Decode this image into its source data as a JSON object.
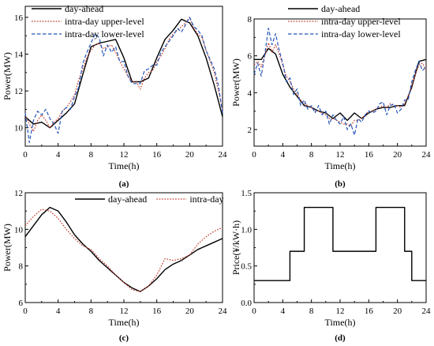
{
  "chart_data": [
    {
      "panel": "(a)",
      "type": "line",
      "xlabel": "Time(h)",
      "ylabel": "Power(MW)",
      "xlim": [
        0,
        24
      ],
      "ylim": [
        9,
        16.6
      ],
      "xticks": [
        0,
        4,
        8,
        12,
        16,
        20,
        24
      ],
      "yticks": [
        10,
        12,
        14,
        16
      ],
      "grid": false,
      "legend": "top-left",
      "series": [
        {
          "name": "day-ahead",
          "color": "#000000",
          "dash": "solid",
          "x": [
            0,
            1,
            2,
            3,
            4,
            5,
            6,
            7,
            8,
            9,
            10,
            11,
            12,
            13,
            14,
            15,
            16,
            17,
            18,
            19,
            20,
            21,
            22,
            23,
            24
          ],
          "y": [
            10.6,
            10.2,
            10.3,
            10.0,
            10.4,
            10.8,
            11.3,
            12.9,
            14.4,
            14.6,
            14.7,
            14.8,
            13.8,
            12.5,
            12.5,
            12.7,
            13.8,
            14.8,
            15.3,
            15.9,
            15.7,
            15.0,
            13.8,
            12.3,
            10.6
          ]
        },
        {
          "name": "intra-day upper-level",
          "color": "#c0392b",
          "dash": "dot",
          "x": [
            0,
            0.5,
            1,
            1.5,
            2,
            2.5,
            3,
            3.5,
            4,
            4.5,
            5,
            5.5,
            6,
            6.5,
            7,
            7.5,
            8,
            8.5,
            9,
            9.5,
            10,
            10.5,
            11,
            11.5,
            12,
            12.5,
            13,
            13.5,
            14,
            14.5,
            15,
            15.5,
            16,
            16.5,
            17,
            17.5,
            18,
            18.5,
            19,
            19.5,
            20,
            20.5,
            21,
            21.5,
            22,
            22.5,
            23,
            23.5,
            24
          ],
          "y": [
            10.7,
            10.2,
            9.8,
            10.4,
            10.7,
            10.4,
            10.0,
            10.3,
            10.5,
            10.9,
            11.1,
            11.4,
            11.8,
            12.6,
            13.2,
            13.8,
            14.2,
            14.5,
            14.6,
            14.3,
            14.4,
            14.5,
            14.1,
            13.6,
            13.2,
            12.8,
            12.5,
            12.5,
            12.1,
            12.7,
            13.0,
            13.1,
            13.6,
            13.9,
            14.3,
            14.8,
            15.1,
            15.3,
            15.5,
            15.7,
            16.0,
            15.4,
            15.1,
            14.9,
            14.2,
            13.6,
            13.0,
            12.0,
            11.0
          ]
        },
        {
          "name": "intra-day lower-level",
          "color": "#2455b8",
          "dash": "dash",
          "x": [
            0,
            0.5,
            1,
            1.5,
            2,
            2.5,
            3,
            3.5,
            4,
            4.5,
            5,
            5.5,
            6,
            6.5,
            7,
            7.5,
            8,
            8.5,
            9,
            9.5,
            10,
            10.5,
            11,
            11.5,
            12,
            12.5,
            13,
            13.5,
            14,
            14.5,
            15,
            15.5,
            16,
            16.5,
            17,
            17.5,
            18,
            18.5,
            19,
            19.5,
            20,
            20.5,
            21,
            21.5,
            22,
            22.5,
            23,
            23.5,
            24
          ],
          "y": [
            10.8,
            9.2,
            10.4,
            10.9,
            10.7,
            11.0,
            10.5,
            10.2,
            9.7,
            10.9,
            11.1,
            11.0,
            11.7,
            12.2,
            13.5,
            14.1,
            14.6,
            15.1,
            14.9,
            13.9,
            14.5,
            14.1,
            14.4,
            13.6,
            13.6,
            12.8,
            12.4,
            12.4,
            12.4,
            13.1,
            13.2,
            13.4,
            13.4,
            14.1,
            14.4,
            14.7,
            15.0,
            15.4,
            15.2,
            15.6,
            16.0,
            15.5,
            15.3,
            15.0,
            14.2,
            13.7,
            13.2,
            12.3,
            10.8
          ]
        }
      ]
    },
    {
      "panel": "(b)",
      "type": "line",
      "xlabel": "Time(h)",
      "ylabel": "Power(MW)",
      "xlim": [
        0,
        24
      ],
      "ylim": [
        1.1,
        8.0
      ],
      "xticks": [
        0,
        4,
        8,
        12,
        16,
        20,
        24
      ],
      "yticks": [
        2,
        4,
        6,
        8
      ],
      "grid": false,
      "legend": "top-right",
      "series": [
        {
          "name": "day-ahead",
          "color": "#000000",
          "dash": "solid",
          "x": [
            0,
            1,
            2,
            3,
            4,
            5,
            6,
            7,
            8,
            9,
            10,
            11,
            12,
            13,
            14,
            15,
            16,
            17,
            18,
            19,
            20,
            21,
            22,
            23,
            24
          ],
          "y": [
            5.8,
            5.8,
            6.4,
            6.1,
            5.0,
            4.3,
            3.8,
            3.3,
            3.2,
            3.0,
            2.9,
            2.6,
            2.9,
            2.5,
            2.9,
            2.6,
            2.9,
            3.1,
            3.2,
            3.2,
            3.3,
            3.3,
            4.3,
            5.7,
            5.8
          ]
        },
        {
          "name": "intra-day upper-level",
          "color": "#c0392b",
          "dash": "dot",
          "x": [
            0,
            0.5,
            1,
            1.5,
            2,
            2.5,
            3,
            3.5,
            4,
            4.5,
            5,
            5.5,
            6,
            6.5,
            7,
            7.5,
            8,
            8.5,
            9,
            9.5,
            10,
            10.5,
            11,
            11.5,
            12,
            12.5,
            13,
            13.5,
            14,
            14.5,
            15,
            15.5,
            16,
            16.5,
            17,
            17.5,
            18,
            18.5,
            19,
            19.5,
            20,
            20.5,
            21,
            21.5,
            22,
            22.5,
            23,
            23.5,
            24
          ],
          "y": [
            5.5,
            5.7,
            5.4,
            6.0,
            6.7,
            6.2,
            6.6,
            6.1,
            5.5,
            4.9,
            4.6,
            4.2,
            3.9,
            3.6,
            3.4,
            3.3,
            3.2,
            3.0,
            3.0,
            2.9,
            2.8,
            2.6,
            2.6,
            2.5,
            2.4,
            2.3,
            2.3,
            2.2,
            2.5,
            2.5,
            2.6,
            2.8,
            3.0,
            3.0,
            3.1,
            3.2,
            3.3,
            3.2,
            3.4,
            3.3,
            3.3,
            3.2,
            3.4,
            3.8,
            4.4,
            5.0,
            5.5,
            5.6,
            5.2
          ]
        },
        {
          "name": "intra-day lower-level",
          "color": "#2455b8",
          "dash": "dash",
          "x": [
            0,
            0.5,
            1,
            1.5,
            2,
            2.5,
            3,
            3.5,
            4,
            4.5,
            5,
            5.5,
            6,
            6.5,
            7,
            7.5,
            8,
            8.5,
            9,
            9.5,
            10,
            10.5,
            11,
            11.5,
            12,
            12.5,
            13,
            13.5,
            14,
            14.5,
            15,
            15.5,
            16,
            16.5,
            17,
            17.5,
            18,
            18.5,
            19,
            19.5,
            20,
            20.5,
            21,
            21.5,
            22,
            22.5,
            23,
            23.5,
            24
          ],
          "y": [
            5.0,
            5.6,
            4.9,
            6.1,
            7.5,
            6.6,
            7.2,
            6.3,
            5.6,
            4.6,
            4.8,
            3.9,
            4.2,
            3.3,
            3.6,
            3.1,
            3.3,
            2.9,
            3.3,
            2.8,
            3.0,
            2.3,
            2.8,
            2.5,
            2.3,
            2.7,
            2.0,
            2.3,
            1.7,
            2.6,
            2.4,
            2.8,
            3.0,
            2.9,
            3.0,
            3.4,
            3.5,
            2.8,
            3.3,
            3.4,
            2.9,
            3.1,
            3.6,
            3.6,
            4.6,
            5.2,
            5.7,
            5.2,
            5.4
          ]
        }
      ]
    },
    {
      "panel": "(c)",
      "type": "line",
      "xlabel": "Time(h)",
      "ylabel": "Power(MW)",
      "xlim": [
        0,
        24
      ],
      "ylim": [
        6,
        12
      ],
      "xticks": [
        0,
        4,
        8,
        12,
        16,
        20,
        24
      ],
      "yticks": [
        6,
        8,
        10,
        12
      ],
      "grid": false,
      "legend": "top-center",
      "series": [
        {
          "name": "day-ahead",
          "color": "#000000",
          "dash": "solid",
          "x": [
            0,
            1,
            2,
            3,
            4,
            5,
            6,
            7,
            8,
            9,
            10,
            11,
            12,
            13,
            14,
            15,
            16,
            17,
            18,
            19,
            20,
            21,
            22,
            23,
            24
          ],
          "y": [
            9.6,
            10.2,
            10.8,
            11.2,
            11.0,
            10.4,
            9.7,
            9.2,
            8.8,
            8.3,
            7.9,
            7.5,
            7.1,
            6.8,
            6.6,
            6.9,
            7.3,
            7.8,
            8.1,
            8.3,
            8.6,
            8.9,
            9.1,
            9.3,
            9.5
          ]
        },
        {
          "name": "intra-day",
          "color": "#c0392b",
          "dash": "dot",
          "x": [
            0,
            1,
            2,
            3,
            4,
            5,
            6,
            7,
            8,
            9,
            10,
            11,
            12,
            13,
            14,
            15,
            16,
            17,
            18,
            19,
            20,
            21,
            22,
            23,
            24
          ],
          "y": [
            10.2,
            10.7,
            11.1,
            11.0,
            10.6,
            10.0,
            9.5,
            9.1,
            8.9,
            8.4,
            8.0,
            7.5,
            7.1,
            6.7,
            6.6,
            6.9,
            7.5,
            8.4,
            8.3,
            8.4,
            8.6,
            9.2,
            9.6,
            9.9,
            10.1
          ]
        }
      ]
    },
    {
      "panel": "(d)",
      "type": "line",
      "xlabel": "Time(h)",
      "ylabel": "Price(¥/kW·h)",
      "xlim": [
        0,
        24
      ],
      "ylim": [
        0,
        1.5
      ],
      "xticks": [
        0,
        4,
        8,
        12,
        16,
        20,
        24
      ],
      "yticks": [
        0.0,
        0.5,
        1.0,
        1.5
      ],
      "ytick_labels": [
        "0.0",
        "0.5",
        "1.0",
        "1.5"
      ],
      "grid": false,
      "legend": "none",
      "series": [
        {
          "color": "#000000",
          "dash": "solid",
          "step": true,
          "x": [
            0,
            5,
            5,
            7,
            7,
            11,
            11,
            17,
            17,
            21,
            21,
            22,
            22,
            24
          ],
          "y": [
            0.3,
            0.3,
            0.7,
            0.7,
            1.3,
            1.3,
            0.7,
            0.7,
            1.3,
            1.3,
            0.7,
            0.7,
            0.3,
            0.3
          ]
        }
      ]
    }
  ]
}
